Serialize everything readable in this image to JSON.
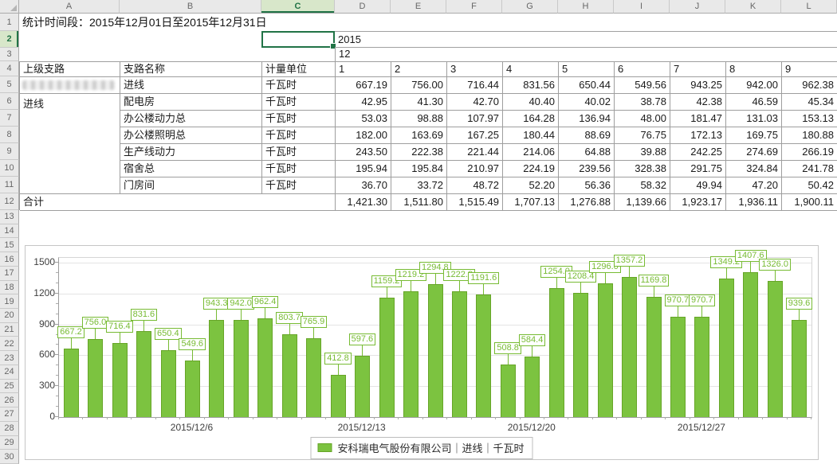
{
  "spreadsheet": {
    "title": "统计时间段：2015年12月01日至2015年12月31日",
    "columns": [
      "A",
      "B",
      "C",
      "D",
      "E",
      "F",
      "G",
      "H",
      "I",
      "J",
      "K",
      "L"
    ],
    "row_count": 30,
    "selected_column": "C",
    "selected_row": "2",
    "accent_green": "#217346",
    "cells": {
      "c2": "",
      "d2": "2015",
      "d3": "12"
    },
    "table": {
      "headers": [
        "上级支路",
        "支路名称",
        "计量单位",
        "1",
        "2",
        "3",
        "4",
        "5",
        "6",
        "7",
        "8",
        "9"
      ],
      "parent_group": "进线",
      "rows": [
        {
          "parent": "",
          "parent_redacted": true,
          "name": "进线",
          "unit": "千瓦时",
          "values": [
            "667.19",
            "756.00",
            "716.44",
            "831.56",
            "650.44",
            "549.56",
            "943.25",
            "942.00",
            "962.38"
          ]
        },
        {
          "parent": "进线",
          "name": "配电房",
          "unit": "千瓦时",
          "values": [
            "42.95",
            "41.30",
            "42.70",
            "40.40",
            "40.02",
            "38.78",
            "42.38",
            "46.59",
            "45.34"
          ]
        },
        {
          "name": "办公楼动力总",
          "unit": "千瓦时",
          "values": [
            "53.03",
            "98.88",
            "107.97",
            "164.28",
            "136.94",
            "48.00",
            "181.47",
            "131.03",
            "153.13"
          ]
        },
        {
          "name": "办公楼照明总",
          "unit": "千瓦时",
          "values": [
            "182.00",
            "163.69",
            "167.25",
            "180.44",
            "88.69",
            "76.75",
            "172.13",
            "169.75",
            "180.88"
          ]
        },
        {
          "name": "生产线动力",
          "unit": "千瓦时",
          "values": [
            "243.50",
            "222.38",
            "221.44",
            "214.06",
            "64.88",
            "39.88",
            "242.25",
            "274.69",
            "266.19"
          ]
        },
        {
          "name": "宿舍总",
          "unit": "千瓦时",
          "values": [
            "195.94",
            "195.84",
            "210.97",
            "224.19",
            "239.56",
            "328.38",
            "291.75",
            "324.84",
            "241.78"
          ]
        },
        {
          "name": "门房间",
          "unit": "千瓦时",
          "values": [
            "36.70",
            "33.72",
            "48.72",
            "52.20",
            "56.36",
            "58.32",
            "49.94",
            "47.20",
            "50.42"
          ]
        }
      ],
      "total_label": "合计",
      "totals": [
        "1,421.30",
        "1,511.80",
        "1,515.49",
        "1,707.13",
        "1,276.88",
        "1,139.66",
        "1,923.17",
        "1,936.11",
        "1,900.11"
      ]
    }
  },
  "chart_data": {
    "type": "bar",
    "values": [
      667.2,
      756.0,
      716.4,
      831.6,
      650.4,
      549.6,
      943.3,
      942.0,
      962.4,
      803.7,
      765.9,
      412.8,
      597.6,
      1159.2,
      1219.2,
      1294.8,
      1222.8,
      1191.6,
      508.8,
      584.4,
      1254.0,
      1208.4,
      1296.0,
      1357.2,
      1169.8,
      970.7,
      970.7,
      1349.2,
      1407.6,
      1326.0,
      939.6
    ],
    "x_tick_labels": [
      "2015/12/6",
      "2015/12/13",
      "2015/12/20",
      "2015/12/27"
    ],
    "x_tick_day_positions": [
      6,
      13,
      20,
      27
    ],
    "ylim": [
      0,
      1500
    ],
    "yticks": [
      0,
      300,
      600,
      900,
      1200,
      1500
    ],
    "grid": true,
    "legend": "安科瑞电气股份有限公司｜进线｜千瓦时",
    "legend_position": "bottom",
    "bar_color": "#7CC340",
    "bar_border_color": "#66A527",
    "label_color": "#77BB33"
  }
}
